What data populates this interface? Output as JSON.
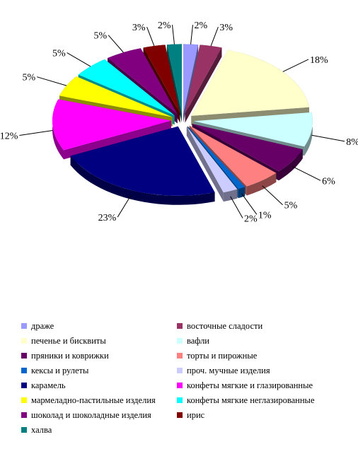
{
  "chart_data": {
    "type": "pie",
    "variant": "exploded-3d",
    "title": "",
    "legend_position": "bottom",
    "slices": [
      {
        "name": "драже",
        "value": 2,
        "label": "2%",
        "color": "#9999ff"
      },
      {
        "name": "восточные сладости",
        "value": 3,
        "label": "3%",
        "color": "#993366"
      },
      {
        "name": "печенье и бисквиты",
        "value": 18,
        "label": "18%",
        "color": "#ffffcc"
      },
      {
        "name": "вафли",
        "value": 8,
        "label": "8%",
        "color": "#ccffff"
      },
      {
        "name": "пряники и коврижки",
        "value": 6,
        "label": "6%",
        "color": "#660066"
      },
      {
        "name": "торты и пирожные",
        "value": 5,
        "label": "5%",
        "color": "#ff8080"
      },
      {
        "name": "кексы и рулеты",
        "value": 1,
        "label": "1%",
        "color": "#0066cc"
      },
      {
        "name": "проч. мучные изделия",
        "value": 2,
        "label": "2%",
        "color": "#ccccff"
      },
      {
        "name": "карамель",
        "value": 23,
        "label": "23%",
        "color": "#000080"
      },
      {
        "name": "конфеты мягкие и глазированные",
        "value": 12,
        "label": "12%",
        "color": "#ff00ff"
      },
      {
        "name": "мармеладно-пастильные изделия",
        "value": 5,
        "label": "5%",
        "color": "#ffff00"
      },
      {
        "name": "конфеты мягкие неглазированные",
        "value": 5,
        "label": "5%",
        "color": "#00ffff"
      },
      {
        "name": "шоколад и шоколадные изделия",
        "value": 5,
        "label": "5%",
        "color": "#800080"
      },
      {
        "name": "ирис",
        "value": 3,
        "label": "3%",
        "color": "#800000"
      },
      {
        "name": "халва",
        "value": 2,
        "label": "2%",
        "color": "#008080"
      }
    ]
  }
}
